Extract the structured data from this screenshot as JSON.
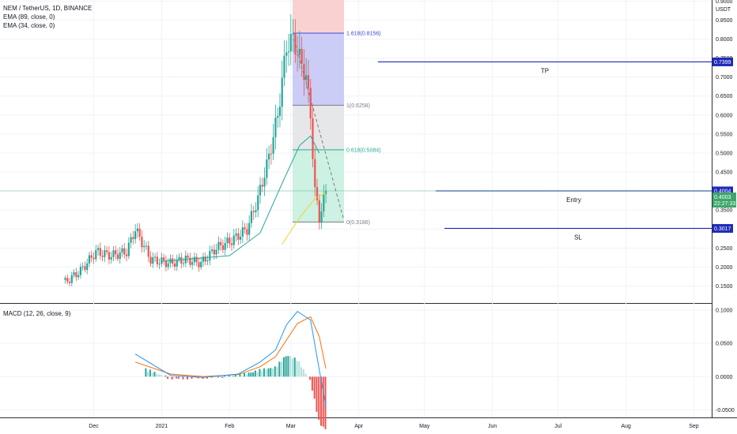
{
  "legend": {
    "symbol": "NEM / TetherUS, 1D, BINANCE",
    "ema1": "EMA (89, close, 0)",
    "ema2": "EMA (34, close, 0)",
    "macd": "MACD (12, 26, close, 9)"
  },
  "currency": "USDT",
  "price_axis_labels": [
    "0.9000",
    "0.8500",
    "0.8000",
    "0.7500",
    "0.7000",
    "0.6500",
    "0.6000",
    "0.5500",
    "0.5000",
    "0.4500",
    "0.4000",
    "0.3500",
    "0.3000",
    "0.2500",
    "0.2000",
    "0.1500"
  ],
  "macd_axis_labels": [
    "0.1000",
    "0.0500",
    "0.0000",
    "-0.0500"
  ],
  "x_labels": [
    "Dec",
    "2021",
    "Feb",
    "Mar",
    "Apr",
    "May",
    "Jun",
    "Jul",
    "Aug",
    "Sep"
  ],
  "fib_levels": [
    {
      "label": "1.618(0.8156)",
      "value": 0.8156,
      "color": "#3d4bd6"
    },
    {
      "label": "1(0.6258)",
      "value": 0.6258,
      "color": "#787b86"
    },
    {
      "label": "0.618(0.5084)",
      "value": 0.5084,
      "color": "#22ab94"
    },
    {
      "label": "0(0.3186)",
      "value": 0.3186,
      "color": "#787b86"
    }
  ],
  "annotations": [
    {
      "text": "TP",
      "price": 0.7399,
      "tag": "0.7399"
    },
    {
      "text": "Entry",
      "price": 0.4004,
      "tag": "0.4004"
    },
    {
      "text": "SL",
      "price": 0.3017,
      "tag": "0.3017"
    }
  ],
  "current_price": {
    "value": "0.4003",
    "countdown": "22:27:33"
  },
  "colors": {
    "up": "#26a69a",
    "down": "#ef5350",
    "ema89": "#f5d328",
    "ema34": "#26a69a",
    "macd_line": "#2196f3",
    "signal_line": "#ff6d00",
    "hline": "#1e2bb8",
    "last": "#3fa66b"
  },
  "chart_data": [
    {
      "type": "candlestick",
      "title": "NEM / TetherUS, 1D, BINANCE",
      "x_axis": "date",
      "ylim": [
        0.12,
        0.92
      ],
      "series": [
        {
          "name": "NEM / TetherUS",
          "points": [
            {
              "x": "2020-11-18",
              "y": 0.16
            },
            {
              "x": "2020-11-25",
              "y": 0.19
            },
            {
              "x": "2020-12-02",
              "y": 0.24
            },
            {
              "x": "2020-12-09",
              "y": 0.23
            },
            {
              "x": "2020-12-16",
              "y": 0.24
            },
            {
              "x": "2020-12-20",
              "y": 0.3
            },
            {
              "x": "2020-12-27",
              "y": 0.22
            },
            {
              "x": "2021-01-05",
              "y": 0.21
            },
            {
              "x": "2021-01-12",
              "y": 0.22
            },
            {
              "x": "2021-01-19",
              "y": 0.21
            },
            {
              "x": "2021-01-26",
              "y": 0.25
            },
            {
              "x": "2021-02-02",
              "y": 0.27
            },
            {
              "x": "2021-02-09",
              "y": 0.3
            },
            {
              "x": "2021-02-14",
              "y": 0.38
            },
            {
              "x": "2021-02-19",
              "y": 0.49
            },
            {
              "x": "2021-02-23",
              "y": 0.6
            },
            {
              "x": "2021-02-27",
              "y": 0.78
            },
            {
              "x": "2021-03-02",
              "y": 0.8
            },
            {
              "x": "2021-03-05",
              "y": 0.75
            },
            {
              "x": "2021-03-08",
              "y": 0.7
            },
            {
              "x": "2021-03-10",
              "y": 0.6
            },
            {
              "x": "2021-03-12",
              "y": 0.4
            },
            {
              "x": "2021-03-14",
              "y": 0.33
            },
            {
              "x": "2021-03-17",
              "y": 0.4
            }
          ]
        },
        {
          "name": "EMA (34, close, 0)",
          "points": [
            {
              "x": "2021-01-01",
              "y": 0.215
            },
            {
              "x": "2021-02-01",
              "y": 0.23
            },
            {
              "x": "2021-02-15",
              "y": 0.29
            },
            {
              "x": "2021-02-25",
              "y": 0.42
            },
            {
              "x": "2021-03-05",
              "y": 0.52
            },
            {
              "x": "2021-03-10",
              "y": 0.545
            },
            {
              "x": "2021-03-14",
              "y": 0.5
            }
          ]
        },
        {
          "name": "EMA (89, close, 0)",
          "points": [
            {
              "x": "2021-02-25",
              "y": 0.26
            },
            {
              "x": "2021-03-05",
              "y": 0.33
            },
            {
              "x": "2021-03-12",
              "y": 0.38
            },
            {
              "x": "2021-03-17",
              "y": 0.395
            }
          ]
        }
      ]
    },
    {
      "type": "line",
      "title": "MACD (12, 26, close, 9)",
      "ylim": [
        -0.06,
        0.105
      ],
      "series": [
        {
          "name": "MACD",
          "points": [
            {
              "x": "2020-12-20",
              "y": 0.034
            },
            {
              "x": "2021-01-05",
              "y": 0.002
            },
            {
              "x": "2021-01-20",
              "y": -0.001
            },
            {
              "x": "2021-02-05",
              "y": 0.004
            },
            {
              "x": "2021-02-15",
              "y": 0.022
            },
            {
              "x": "2021-02-22",
              "y": 0.04
            },
            {
              "x": "2021-02-27",
              "y": 0.078
            },
            {
              "x": "2021-03-04",
              "y": 0.098
            },
            {
              "x": "2021-03-10",
              "y": 0.085
            },
            {
              "x": "2021-03-14",
              "y": 0.01
            },
            {
              "x": "2021-03-17",
              "y": -0.045
            }
          ]
        },
        {
          "name": "Signal",
          "points": [
            {
              "x": "2020-12-20",
              "y": 0.022
            },
            {
              "x": "2021-01-05",
              "y": 0.004
            },
            {
              "x": "2021-01-20",
              "y": 0.0
            },
            {
              "x": "2021-02-05",
              "y": 0.003
            },
            {
              "x": "2021-02-15",
              "y": 0.015
            },
            {
              "x": "2021-02-22",
              "y": 0.03
            },
            {
              "x": "2021-02-27",
              "y": 0.055
            },
            {
              "x": "2021-03-04",
              "y": 0.08
            },
            {
              "x": "2021-03-10",
              "y": 0.09
            },
            {
              "x": "2021-03-14",
              "y": 0.06
            },
            {
              "x": "2021-03-17",
              "y": 0.012
            }
          ]
        }
      ]
    }
  ]
}
